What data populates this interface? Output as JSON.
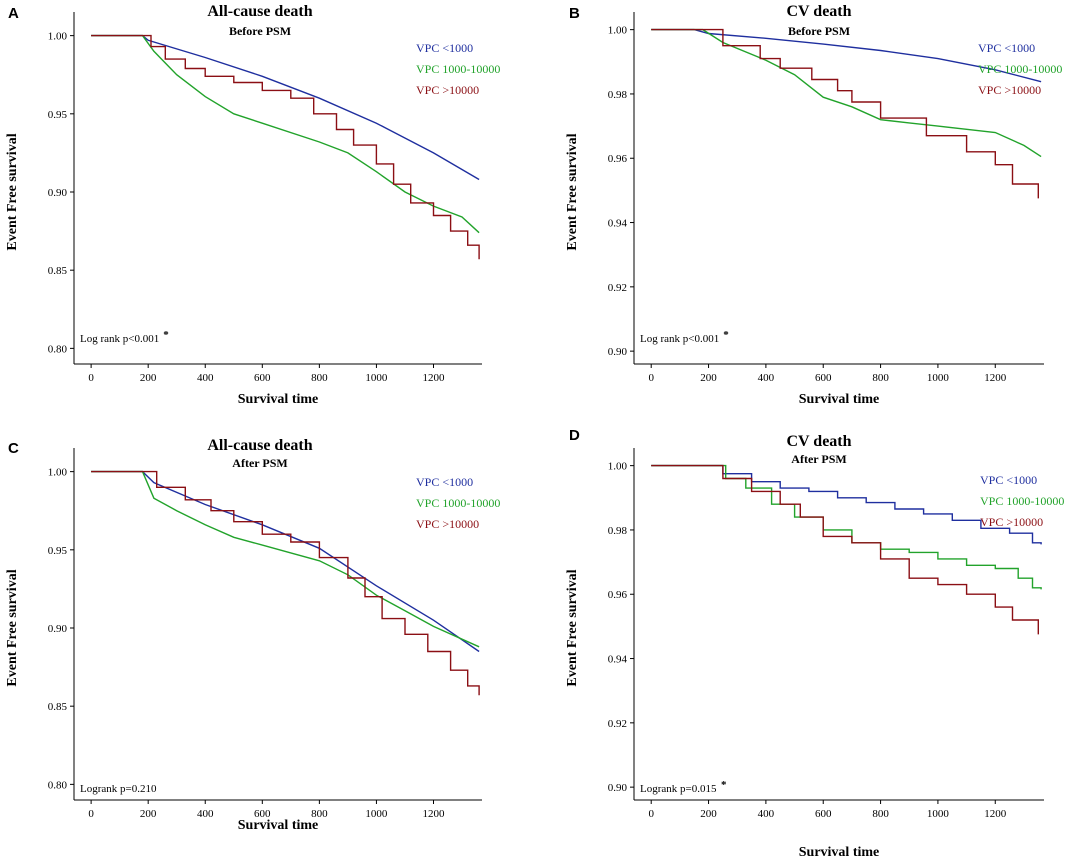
{
  "colors": {
    "blue": "#1f2f9f",
    "green": "#22a32b",
    "red": "#8b0f14",
    "axis": "#000000"
  },
  "chart_data": [
    {
      "panel": "A",
      "type": "line",
      "title": "All-cause death",
      "subtitle": "Before PSM",
      "xlabel": "Survival time",
      "ylabel": "Event Free survival",
      "xlim": [
        -60,
        1370
      ],
      "ylim": [
        0.79,
        1.01
      ],
      "xticks": [
        0,
        200,
        400,
        600,
        800,
        1000,
        1200
      ],
      "yticks": [
        0.8,
        0.85,
        0.9,
        0.95,
        1.0
      ],
      "yticklabels": [
        "0.80",
        "0.85",
        "0.90",
        "0.95",
        "1.00"
      ],
      "annotation": "Log rank p<0.001",
      "annotation_star": "*",
      "series": [
        {
          "name": "VPC <1000",
          "color_key": "blue",
          "step": false,
          "points": [
            [
              0,
              1.0
            ],
            [
              180,
              1.0
            ],
            [
              200,
              0.997
            ],
            [
              400,
              0.986
            ],
            [
              600,
              0.974
            ],
            [
              800,
              0.96
            ],
            [
              1000,
              0.944
            ],
            [
              1200,
              0.925
            ],
            [
              1360,
              0.908
            ]
          ]
        },
        {
          "name": "VPC 1000-10000",
          "color_key": "green",
          "step": false,
          "points": [
            [
              0,
              1.0
            ],
            [
              180,
              1.0
            ],
            [
              220,
              0.99
            ],
            [
              300,
              0.975
            ],
            [
              400,
              0.961
            ],
            [
              500,
              0.95
            ],
            [
              600,
              0.944
            ],
            [
              800,
              0.932
            ],
            [
              900,
              0.925
            ],
            [
              1000,
              0.913
            ],
            [
              1100,
              0.9
            ],
            [
              1200,
              0.891
            ],
            [
              1300,
              0.884
            ],
            [
              1360,
              0.874
            ]
          ]
        },
        {
          "name": "VPC >10000",
          "color_key": "red",
          "step": true,
          "points": [
            [
              0,
              1.0
            ],
            [
              190,
              1.0
            ],
            [
              210,
              0.993
            ],
            [
              260,
              0.985
            ],
            [
              330,
              0.979
            ],
            [
              400,
              0.974
            ],
            [
              500,
              0.97
            ],
            [
              600,
              0.965
            ],
            [
              700,
              0.96
            ],
            [
              780,
              0.95
            ],
            [
              860,
              0.94
            ],
            [
              920,
              0.93
            ],
            [
              1000,
              0.918
            ],
            [
              1060,
              0.905
            ],
            [
              1120,
              0.893
            ],
            [
              1200,
              0.885
            ],
            [
              1260,
              0.875
            ],
            [
              1320,
              0.866
            ],
            [
              1360,
              0.857
            ]
          ]
        }
      ]
    },
    {
      "panel": "B",
      "type": "line",
      "title": "CV death",
      "subtitle": "Before PSM",
      "xlabel": "Survival time",
      "ylabel": "Event Free survival",
      "xlim": [
        -60,
        1370
      ],
      "ylim": [
        0.896,
        1.003
      ],
      "xticks": [
        0,
        200,
        400,
        600,
        800,
        1000,
        1200
      ],
      "yticks": [
        0.9,
        0.92,
        0.94,
        0.96,
        0.98,
        1.0
      ],
      "yticklabels": [
        "0.90",
        "0.92",
        "0.94",
        "0.96",
        "0.98",
        "1.00"
      ],
      "annotation": "Log rank p<0.001",
      "annotation_star": "*",
      "series": [
        {
          "name": "VPC <1000",
          "color_key": "blue",
          "step": false,
          "points": [
            [
              0,
              1.0
            ],
            [
              150,
              1.0
            ],
            [
              200,
              0.9988
            ],
            [
              400,
              0.9973
            ],
            [
              600,
              0.9955
            ],
            [
              800,
              0.9935
            ],
            [
              1000,
              0.991
            ],
            [
              1200,
              0.9875
            ],
            [
              1360,
              0.9838
            ]
          ]
        },
        {
          "name": "VPC 1000-10000",
          "color_key": "green",
          "step": false,
          "points": [
            [
              0,
              1.0
            ],
            [
              180,
              1.0
            ],
            [
              250,
              0.996
            ],
            [
              400,
              0.9905
            ],
            [
              500,
              0.986
            ],
            [
              600,
              0.979
            ],
            [
              700,
              0.976
            ],
            [
              800,
              0.972
            ],
            [
              900,
              0.971
            ],
            [
              1000,
              0.97
            ],
            [
              1100,
              0.969
            ],
            [
              1200,
              0.968
            ],
            [
              1300,
              0.964
            ],
            [
              1360,
              0.9605
            ]
          ]
        },
        {
          "name": "VPC >10000",
          "color_key": "red",
          "step": true,
          "points": [
            [
              0,
              1.0
            ],
            [
              200,
              1.0
            ],
            [
              250,
              0.995
            ],
            [
              380,
              0.991
            ],
            [
              450,
              0.988
            ],
            [
              560,
              0.9845
            ],
            [
              650,
              0.981
            ],
            [
              700,
              0.9775
            ],
            [
              800,
              0.9725
            ],
            [
              960,
              0.967
            ],
            [
              1100,
              0.962
            ],
            [
              1200,
              0.958
            ],
            [
              1260,
              0.952
            ],
            [
              1350,
              0.9475
            ]
          ]
        }
      ]
    },
    {
      "panel": "C",
      "type": "line",
      "title": "All-cause death",
      "subtitle": "After PSM",
      "xlabel": "Survival time",
      "ylabel": "Event Free survival",
      "xlim": [
        -60,
        1370
      ],
      "ylim": [
        0.79,
        1.01
      ],
      "xticks": [
        0,
        200,
        400,
        600,
        800,
        1000,
        1200
      ],
      "yticks": [
        0.8,
        0.85,
        0.9,
        0.95,
        1.0
      ],
      "yticklabels": [
        "0.80",
        "0.85",
        "0.90",
        "0.95",
        "1.00"
      ],
      "annotation": "Logrank p=0.210",
      "annotation_star": "",
      "series": [
        {
          "name": "VPC <1000",
          "color_key": "blue",
          "step": false,
          "points": [
            [
              0,
              1.0
            ],
            [
              180,
              1.0
            ],
            [
              220,
              0.993
            ],
            [
              400,
              0.979
            ],
            [
              600,
              0.966
            ],
            [
              800,
              0.951
            ],
            [
              1000,
              0.927
            ],
            [
              1200,
              0.905
            ],
            [
              1360,
              0.885
            ]
          ]
        },
        {
          "name": "VPC 1000-10000",
          "color_key": "green",
          "step": false,
          "points": [
            [
              0,
              1.0
            ],
            [
              180,
              1.0
            ],
            [
              220,
              0.983
            ],
            [
              300,
              0.975
            ],
            [
              400,
              0.966
            ],
            [
              500,
              0.958
            ],
            [
              600,
              0.953
            ],
            [
              700,
              0.948
            ],
            [
              800,
              0.943
            ],
            [
              900,
              0.934
            ],
            [
              1000,
              0.921
            ],
            [
              1100,
              0.911
            ],
            [
              1200,
              0.901
            ],
            [
              1360,
              0.888
            ]
          ]
        },
        {
          "name": "VPC >10000",
          "color_key": "red",
          "step": true,
          "points": [
            [
              0,
              1.0
            ],
            [
              180,
              1.0
            ],
            [
              230,
              0.99
            ],
            [
              330,
              0.982
            ],
            [
              420,
              0.975
            ],
            [
              500,
              0.968
            ],
            [
              600,
              0.96
            ],
            [
              700,
              0.955
            ],
            [
              800,
              0.945
            ],
            [
              900,
              0.932
            ],
            [
              960,
              0.92
            ],
            [
              1020,
              0.906
            ],
            [
              1100,
              0.896
            ],
            [
              1180,
              0.885
            ],
            [
              1260,
              0.873
            ],
            [
              1320,
              0.863
            ],
            [
              1360,
              0.857
            ]
          ]
        }
      ]
    },
    {
      "panel": "D",
      "type": "line",
      "title": "CV death",
      "subtitle": "After PSM",
      "xlabel": "Survival time",
      "ylabel": "Event Free survival",
      "xlim": [
        -60,
        1370
      ],
      "ylim": [
        0.896,
        1.003
      ],
      "xticks": [
        0,
        200,
        400,
        600,
        800,
        1000,
        1200
      ],
      "yticks": [
        0.9,
        0.92,
        0.94,
        0.96,
        0.98,
        1.0
      ],
      "yticklabels": [
        "0.90",
        "0.92",
        "0.94",
        "0.96",
        "0.98",
        "1.00"
      ],
      "annotation": "Logrank p=0.015",
      "annotation_star": "*",
      "series": [
        {
          "name": "VPC <1000",
          "color_key": "blue",
          "step": true,
          "points": [
            [
              0,
              1.0
            ],
            [
              200,
              1.0
            ],
            [
              250,
              0.9975
            ],
            [
              350,
              0.995
            ],
            [
              450,
              0.993
            ],
            [
              550,
              0.992
            ],
            [
              650,
              0.99
            ],
            [
              750,
              0.9885
            ],
            [
              850,
              0.9865
            ],
            [
              950,
              0.985
            ],
            [
              1050,
              0.983
            ],
            [
              1150,
              0.9805
            ],
            [
              1250,
              0.979
            ],
            [
              1330,
              0.976
            ],
            [
              1360,
              0.9755
            ]
          ]
        },
        {
          "name": "VPC 1000-10000",
          "color_key": "green",
          "step": true,
          "points": [
            [
              0,
              1.0
            ],
            [
              200,
              1.0
            ],
            [
              260,
              0.996
            ],
            [
              330,
              0.993
            ],
            [
              420,
              0.988
            ],
            [
              500,
              0.984
            ],
            [
              600,
              0.98
            ],
            [
              700,
              0.976
            ],
            [
              800,
              0.974
            ],
            [
              900,
              0.973
            ],
            [
              1000,
              0.971
            ],
            [
              1100,
              0.969
            ],
            [
              1200,
              0.968
            ],
            [
              1280,
              0.965
            ],
            [
              1330,
              0.962
            ],
            [
              1360,
              0.9615
            ]
          ]
        },
        {
          "name": "VPC >10000",
          "color_key": "red",
          "step": true,
          "points": [
            [
              0,
              1.0
            ],
            [
              200,
              1.0
            ],
            [
              250,
              0.996
            ],
            [
              350,
              0.992
            ],
            [
              450,
              0.988
            ],
            [
              520,
              0.984
            ],
            [
              600,
              0.978
            ],
            [
              700,
              0.976
            ],
            [
              800,
              0.971
            ],
            [
              900,
              0.965
            ],
            [
              1000,
              0.963
            ],
            [
              1100,
              0.96
            ],
            [
              1200,
              0.956
            ],
            [
              1260,
              0.952
            ],
            [
              1350,
              0.9475
            ]
          ]
        }
      ]
    }
  ]
}
